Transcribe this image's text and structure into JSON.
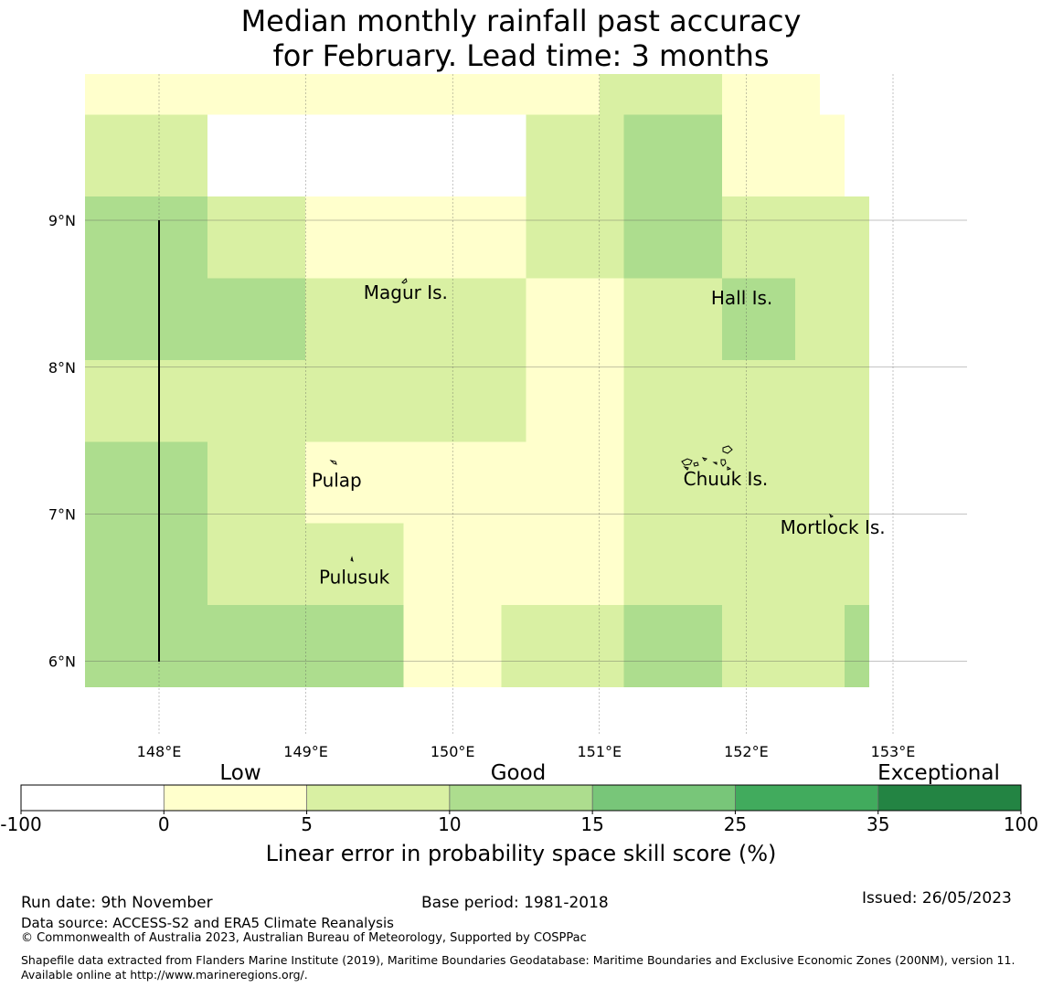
{
  "title_line1": "Median monthly rainfall past accuracy",
  "title_line2": "for February. Lead time: 3 months",
  "map": {
    "x_ticks": [
      {
        "value": 148,
        "label": "148°E"
      },
      {
        "value": 149,
        "label": "149°E"
      },
      {
        "value": 150,
        "label": "150°E"
      },
      {
        "value": 151,
        "label": "151°E"
      },
      {
        "value": 152,
        "label": "152°E"
      },
      {
        "value": 153,
        "label": "153°E"
      }
    ],
    "y_ticks": [
      {
        "value": 9,
        "label": "9°N"
      },
      {
        "value": 8,
        "label": "8°N"
      },
      {
        "value": 7,
        "label": "7°N"
      },
      {
        "value": 6,
        "label": "6°N"
      }
    ],
    "places": [
      {
        "name": "Magur Is.",
        "lon": 149.68,
        "lat": 8.51
      },
      {
        "name": "Hall Is.",
        "lon": 151.97,
        "lat": 8.47
      },
      {
        "name": "Pulap",
        "lon": 149.21,
        "lat": 7.23
      },
      {
        "name": "Chuuk Is.",
        "lon": 151.86,
        "lat": 7.24
      },
      {
        "name": "Mortlock Is.",
        "lon": 152.59,
        "lat": 6.91
      },
      {
        "name": "Pulusuk",
        "lon": 149.33,
        "lat": 6.57
      }
    ],
    "palette": {
      "0": "#ffffff",
      "1": "#ffffcc",
      "2": "#d9f0a3",
      "3": "#addd8e",
      "4": "#78c679",
      "5": "#41ab5d",
      "6": "#238443"
    },
    "cell_grid": [
      "11111111111111111111122222111100",
      "22222000000000000022223333111110",
      "22222000000000000022223333111110",
      "33333222211111111122223333222222",
      "33333222211111111122223333222222",
      "33333333322222222211112222333222",
      "33333333322222222211112222333222",
      "22222222222222222211112222222222",
      "22222222222222222211112222222222",
      "33333222211111111111112222222222",
      "33333222211111111111112222222222",
      "33333222222221111111112222222222",
      "33333222222221111111112222222222",
      "33333333333331111222223333222223",
      "33333333333331111222223333222223"
    ]
  },
  "colorbar": {
    "category_labels": [
      "Low",
      "Good",
      "Exceptional"
    ],
    "tick_labels": [
      "-100",
      "0",
      "5",
      "10",
      "15",
      "25",
      "35",
      "100"
    ],
    "colors": [
      "#ffffff",
      "#ffffcc",
      "#d9f0a3",
      "#addd8e",
      "#78c679",
      "#41ab5d",
      "#238443"
    ],
    "title": "Linear error in probability space skill score (%)"
  },
  "footer": {
    "run_date": "Run date: 9th November",
    "base_period": "Base period: 1981-2018",
    "issued": "Issued: 26/05/2023",
    "data_source": "Data source: ACCESS-S2 and ERA5 Climate Reanalysis",
    "copyright": "© Commonwealth of Australia 2023, Australian Bureau of Meteorology, Supported by COSPPac",
    "shapefile": "Shapefile data extracted from Flanders Marine Institute (2019), Maritime Boundaries Geodatabase: Maritime Boundaries and Exclusive Economic Zones (200NM), version 11. Available online at http://www.marineregions.org/."
  }
}
